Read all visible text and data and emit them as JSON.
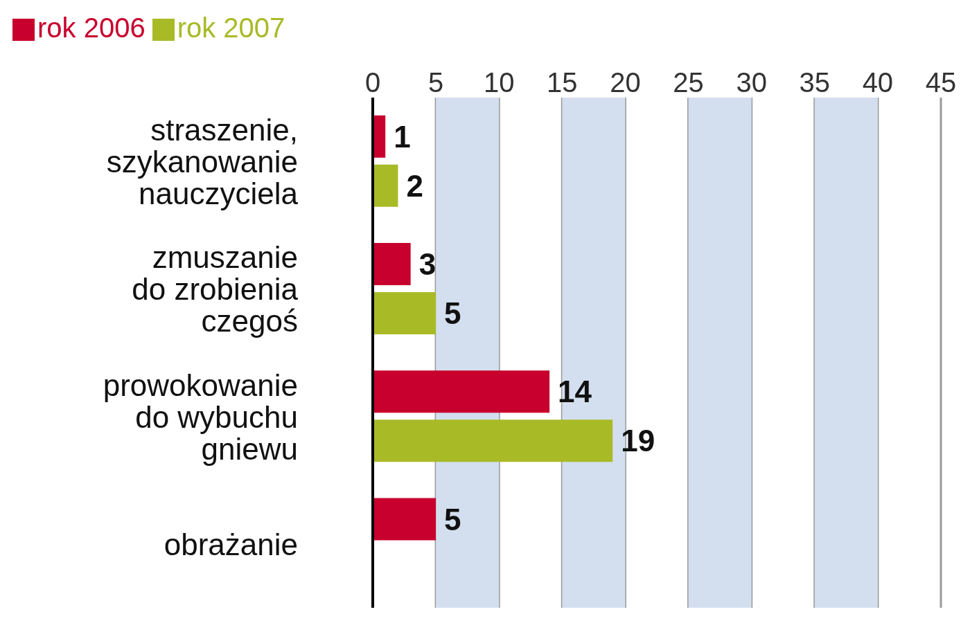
{
  "chart_data": {
    "type": "bar",
    "orientation": "horizontal",
    "categories": [
      "straszenie,\nszykanowanie\nnauczyciela",
      "zmuszanie\ndo zrobienia\nczegoś",
      "prowokowanie\ndo wybuchu\ngniewu",
      "obrażanie"
    ],
    "series": [
      {
        "name": "rok 2006",
        "color": "#c8002d",
        "values": [
          1,
          3,
          14,
          5
        ]
      },
      {
        "name": "rok 2007",
        "color": "#a9ba27",
        "values": [
          2,
          5,
          19,
          null
        ]
      }
    ],
    "xlim": [
      0,
      45
    ],
    "xticks": [
      0,
      5,
      10,
      15,
      20,
      25,
      30,
      35,
      40,
      45
    ],
    "bands": [
      {
        "axis": "x",
        "from": 5,
        "to": 10,
        "color": "#d3dfee"
      },
      {
        "axis": "x",
        "from": 15,
        "to": 20,
        "color": "#d3dfee"
      },
      {
        "axis": "x",
        "from": 25,
        "to": 30,
        "color": "#d3dfee"
      },
      {
        "axis": "x",
        "from": 35,
        "to": 40,
        "color": "#d3dfee"
      }
    ],
    "grid": "x",
    "legend": "top left",
    "data_labels": true
  }
}
